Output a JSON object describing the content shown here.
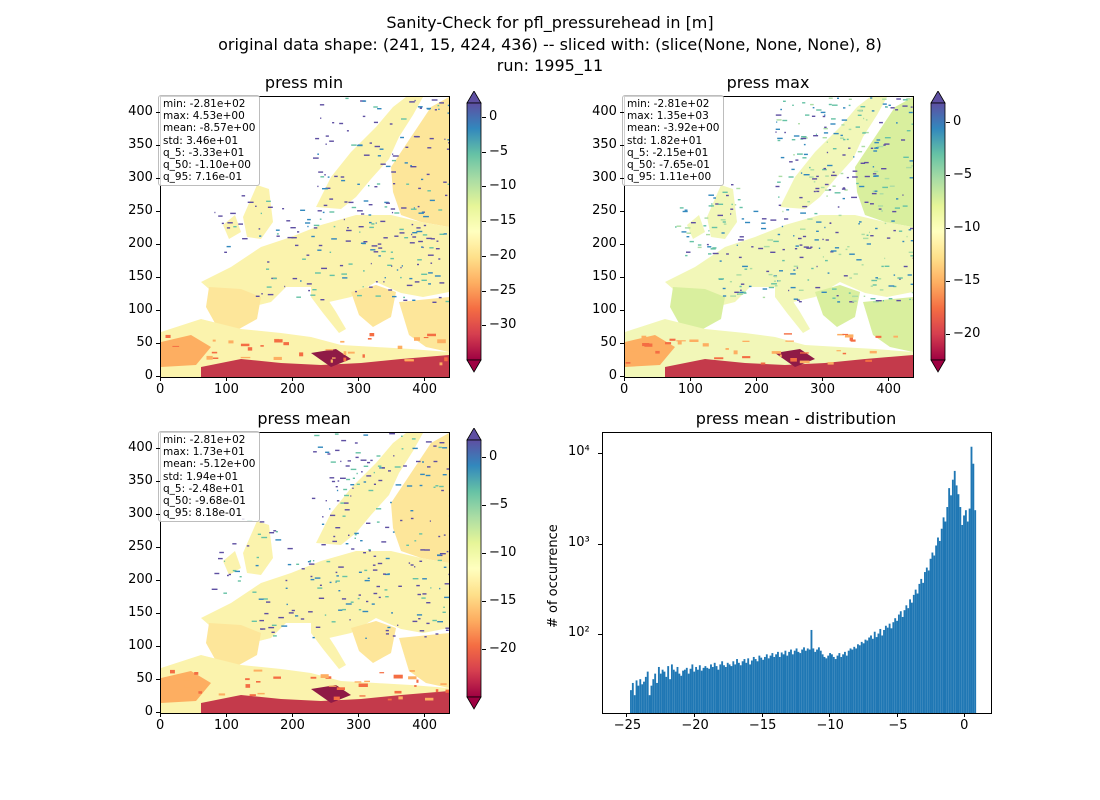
{
  "figure": {
    "title_lines": [
      "Sanity-Check for pfl_pressurehead in [m]",
      "original data shape: (241, 15, 424, 436) -- sliced with: (slice(None, None, None), 8)",
      "run: 1995_11"
    ]
  },
  "chart_data": [
    {
      "type": "heatmap",
      "title": "press min",
      "xlim": [
        0,
        436
      ],
      "ylim": [
        0,
        424
      ],
      "x_ticks": [
        "0",
        "100",
        "200",
        "300",
        "400"
      ],
      "y_ticks": [
        "0",
        "50",
        "100",
        "150",
        "200",
        "250",
        "300",
        "350",
        "400"
      ],
      "colorbar": {
        "range": [
          -35,
          2
        ],
        "ticks": [
          "0",
          "−5",
          "−10",
          "−15",
          "−20",
          "−25",
          "−30"
        ],
        "colormap": "Spectral"
      },
      "stats": [
        "min: -2.81e+02",
        "max: 4.53e+00",
        "mean: -8.57e+00",
        "std: 3.46e+01",
        "q_5: -3.33e+01",
        "q_50: -1.10e+00",
        "q_95: 7.16e-01"
      ]
    },
    {
      "type": "heatmap",
      "title": "press max",
      "xlim": [
        0,
        436
      ],
      "ylim": [
        0,
        424
      ],
      "x_ticks": [
        "0",
        "100",
        "200",
        "300",
        "400"
      ],
      "y_ticks": [
        "0",
        "50",
        "100",
        "150",
        "200",
        "250",
        "300",
        "350",
        "400"
      ],
      "colorbar": {
        "range": [
          -22.5,
          1.8
        ],
        "ticks": [
          "0",
          "−5",
          "−10",
          "−15",
          "−20"
        ],
        "colormap": "Spectral"
      },
      "stats": [
        "min: -2.81e+02",
        "max: 1.35e+03",
        "mean: -3.92e+00",
        "std: 1.82e+01",
        "q_5: -2.15e+01",
        "q_50: -7.65e-01",
        "q_95: 1.11e+00"
      ]
    },
    {
      "type": "heatmap",
      "title": "press mean",
      "xlim": [
        0,
        436
      ],
      "ylim": [
        0,
        424
      ],
      "x_ticks": [
        "0",
        "100",
        "200",
        "300",
        "400"
      ],
      "y_ticks": [
        "0",
        "50",
        "100",
        "150",
        "200",
        "250",
        "300",
        "350",
        "400"
      ],
      "colorbar": {
        "range": [
          -25,
          1.8
        ],
        "ticks": [
          "0",
          "−5",
          "−10",
          "−15",
          "−20"
        ],
        "colormap": "Spectral"
      },
      "stats": [
        "min: -2.81e+02",
        "max: 1.73e+01",
        "mean: -5.12e+00",
        "std: 1.94e+01",
        "q_5: -2.48e+01",
        "q_50: -9.68e-01",
        "q_95: 8.18e-01"
      ]
    },
    {
      "type": "bar",
      "title": "press mean - distribution",
      "xlabel": "",
      "ylabel": "# of occurrence",
      "yscale": "log",
      "xlim": [
        -26.8,
        1.9
      ],
      "ylim": [
        14,
        17000
      ],
      "x_ticks": [
        "−25",
        "−20",
        "−15",
        "−10",
        "−5",
        "0"
      ],
      "y_ticks": [
        "10²",
        "10³",
        "10⁴"
      ],
      "bar_color": "#1f77b4",
      "bins_range": [
        -24.8,
        0.8
      ],
      "counts": [
        25,
        30,
        22,
        32,
        28,
        33,
        29,
        31,
        35,
        40,
        22,
        28,
        33,
        38,
        30,
        45,
        38,
        42,
        40,
        35,
        46,
        33,
        48,
        42,
        40,
        45,
        38,
        36,
        41,
        42,
        44,
        38,
        43,
        48,
        40,
        45,
        42,
        47,
        41,
        44,
        46,
        44,
        43,
        48,
        45,
        50,
        46,
        42,
        48,
        52,
        47,
        45,
        50,
        48,
        46,
        52,
        48,
        55,
        50,
        47,
        52,
        55,
        50,
        56,
        48,
        53,
        58,
        55,
        52,
        60,
        57,
        54,
        58,
        62,
        56,
        60,
        64,
        58,
        62,
        66,
        58,
        65,
        62,
        68,
        60,
        66,
        70,
        62,
        68,
        72,
        66,
        64,
        70,
        74,
        68,
        72,
        70,
        115,
        72,
        66,
        70,
        74,
        68,
        62,
        58,
        56,
        60,
        64,
        62,
        58,
        55,
        60,
        64,
        58,
        62,
        66,
        60,
        68,
        72,
        70,
        75,
        72,
        80,
        78,
        85,
        82,
        90,
        88,
        95,
        100,
        92,
        110,
        96,
        105,
        118,
        100,
        115,
        128,
        122,
        135,
        120,
        140,
        155,
        145,
        170,
        185,
        160,
        190,
        215,
        200,
        250,
        230,
        280,
        320,
        290,
        370,
        420,
        380,
        500,
        560,
        520,
        700,
        820,
        760,
        980,
        1200,
        1100,
        1500,
        2000,
        1800,
        2600,
        4200,
        3500,
        5200,
        6500,
        4500,
        3600,
        2600,
        1650,
        2100,
        2400,
        1800,
        2500,
        12000,
        7800,
        2400
      ]
    }
  ]
}
